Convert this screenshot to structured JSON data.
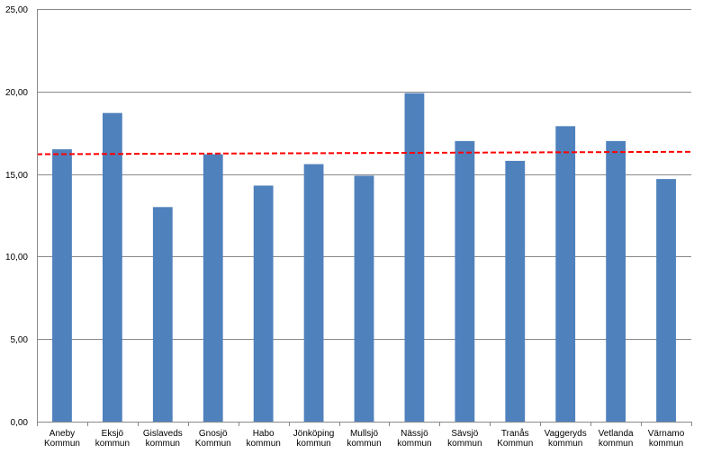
{
  "chart_data": {
    "type": "bar",
    "title": "",
    "xlabel": "",
    "ylabel": "",
    "ylim": [
      0,
      25
    ],
    "yticks": [
      "0,00",
      "5,00",
      "10,00",
      "15,00",
      "20,00",
      "25,00"
    ],
    "ytick_values": [
      0,
      5,
      10,
      15,
      20,
      25
    ],
    "grid": true,
    "categories": [
      [
        "Aneby",
        "Kommun"
      ],
      [
        "Eksjö",
        "kommun"
      ],
      [
        "Gislaveds",
        "kommun"
      ],
      [
        "Gnosjö",
        "Kommun"
      ],
      [
        "Habo",
        "kommun"
      ],
      [
        "Jönköping",
        "kommun"
      ],
      [
        "Mullsjö",
        "kommun"
      ],
      [
        "Nässjö",
        "kommun"
      ],
      [
        "Sävsjö",
        "kommun"
      ],
      [
        "Tranås",
        "Kommun"
      ],
      [
        "Vaggeryds",
        "kommun"
      ],
      [
        "Vetlanda",
        "kommun"
      ],
      [
        "Värnamo",
        "kommun"
      ]
    ],
    "values": [
      16.5,
      18.7,
      13.0,
      16.2,
      14.3,
      15.6,
      14.9,
      19.9,
      17.0,
      15.8,
      17.9,
      17.0,
      14.7
    ],
    "reference_line": {
      "start": 16.2,
      "end": 16.35,
      "color": "#ff0000",
      "style": "dashed"
    },
    "bar_color": "#4f81bd",
    "grid_color": "#898989"
  }
}
